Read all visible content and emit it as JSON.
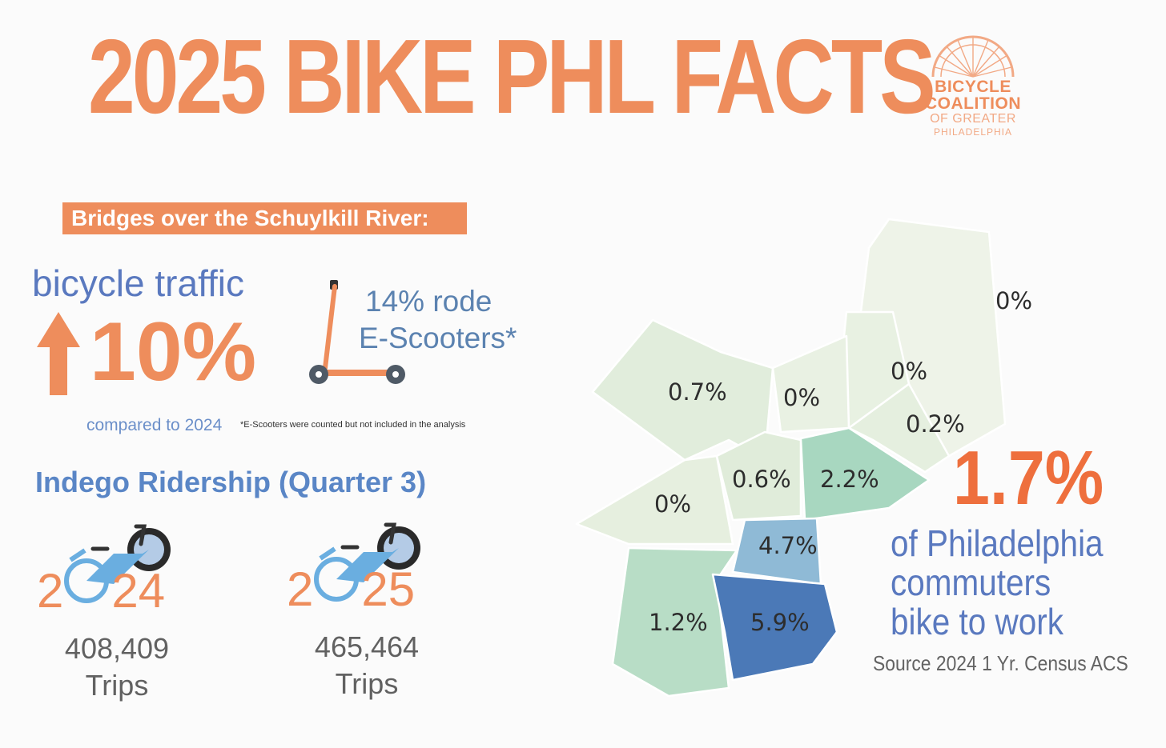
{
  "header": {
    "title": "2025 BIKE PHL FACTS",
    "logo": {
      "line1": "BICYCLE",
      "line2": "COALITION",
      "line3": "OF GREATER",
      "line4": "PHILADELPHIA"
    }
  },
  "bridges": {
    "banner": "Bridges over the Schuylkill River:",
    "traffic_label": "bicycle traffic",
    "traffic_change": "10%",
    "trend": "up",
    "scooter_pct": "14%  rode",
    "scooter_label": "E-Scooters*",
    "compared": "compared to 2024",
    "footnote": "*E-Scooters were counted but not included in the analysis"
  },
  "indego": {
    "title": "Indego Ridership (Quarter 3)",
    "years": [
      {
        "left": "2",
        "right": "24",
        "trips": "408,409",
        "unit": "Trips"
      },
      {
        "left": "2",
        "right": "25",
        "trips": "465,464",
        "unit": "Trips"
      }
    ]
  },
  "map": {
    "districts": [
      {
        "label": "0%",
        "color": "#eef3e8"
      },
      {
        "label": "0%",
        "color": "#e8f1e2"
      },
      {
        "label": "0.2%",
        "color": "#e5efdf"
      },
      {
        "label": "0.7%",
        "color": "#e1eddc"
      },
      {
        "label": "0%",
        "color": "#e9f1e3"
      },
      {
        "label": "0%",
        "color": "#e6efdf"
      },
      {
        "label": "0.6%",
        "color": "#e0ecda"
      },
      {
        "label": "2.2%",
        "color": "#a8d7c0"
      },
      {
        "label": "4.7%",
        "color": "#8fbad6"
      },
      {
        "label": "1.2%",
        "color": "#b8ddc6"
      },
      {
        "label": "5.9%",
        "color": "#4b79b7"
      }
    ]
  },
  "stat": {
    "value": "1.7%",
    "line1": "of Philadelphia",
    "line2": "commuters",
    "line3": "bike to work",
    "source": "Source 2024 1 Yr. Census ACS"
  },
  "colors": {
    "accent_orange": "#ee8d5c",
    "accent_blue": "#5a79bf",
    "bike_blue": "#6aaee0"
  }
}
